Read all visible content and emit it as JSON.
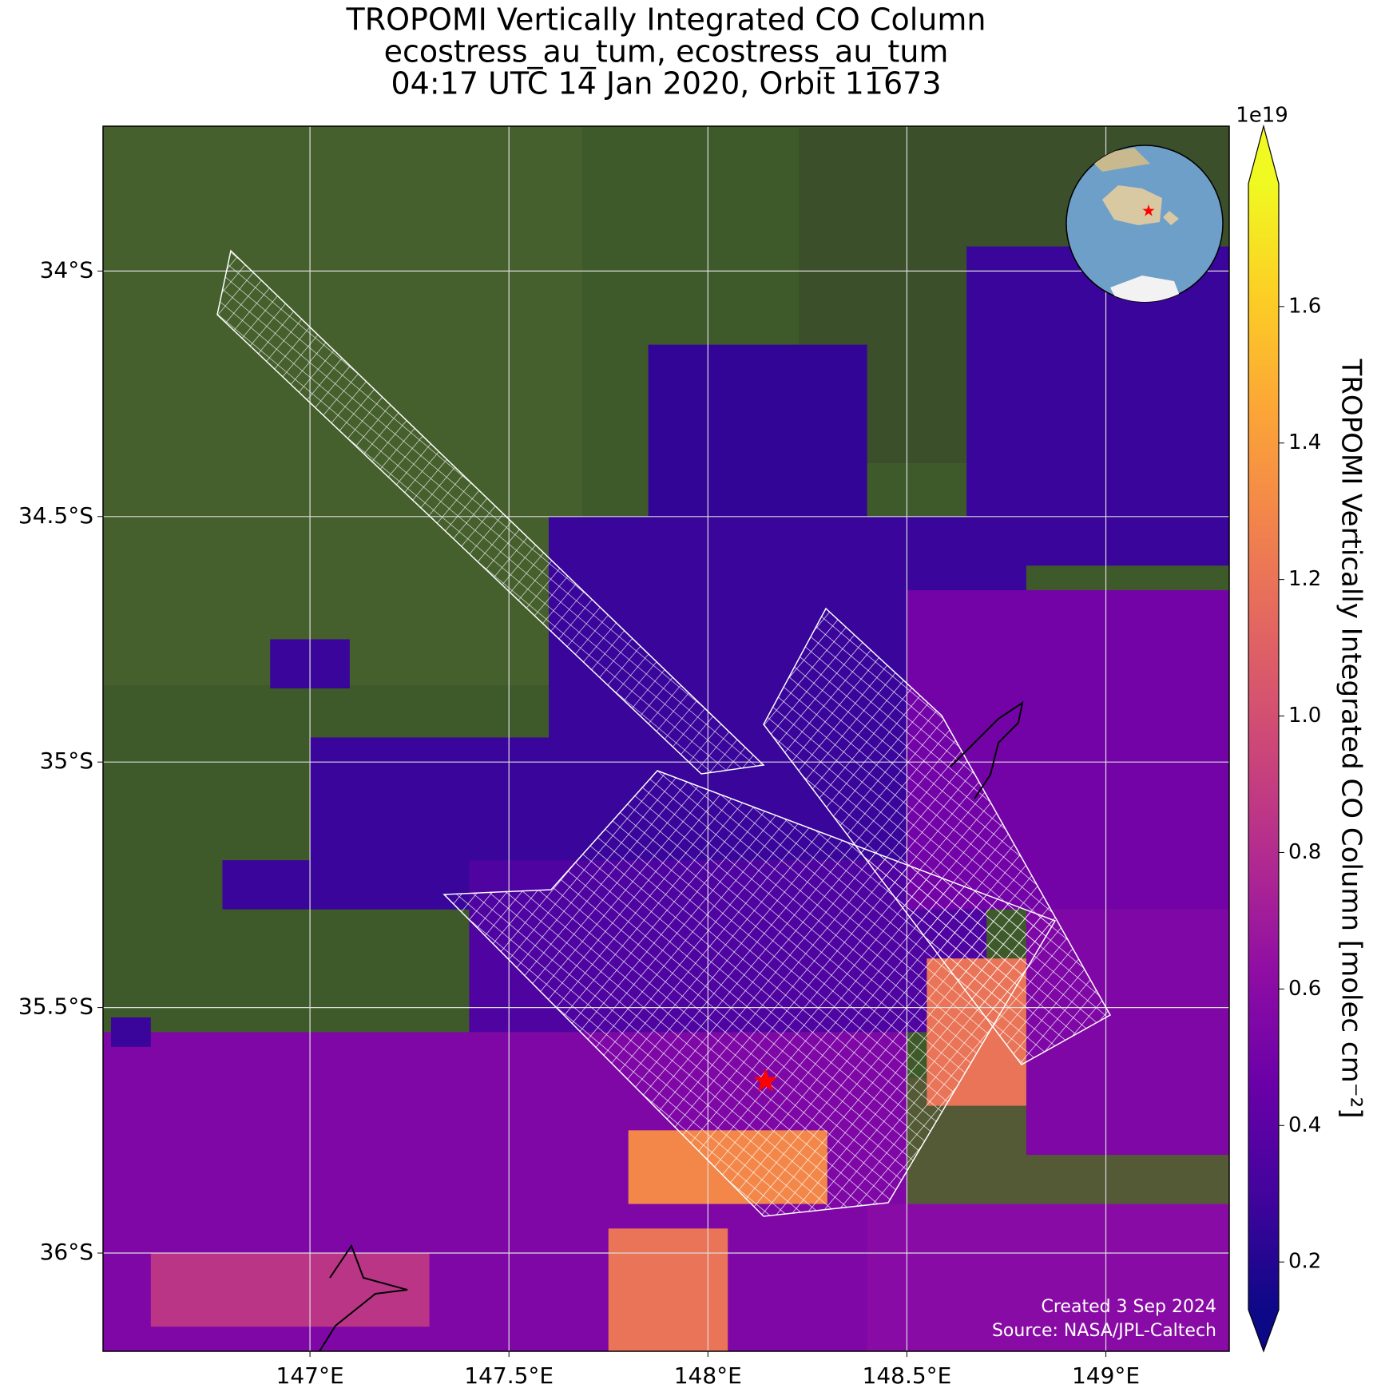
{
  "chart_data": {
    "type": "map",
    "title": "TROPOMI Vertically Integrated CO Column",
    "subtitle": [
      "ecostress_au_tum, ecostress_au_tum",
      "04:17 UTC 14 Jan 2020, Orbit 11673"
    ],
    "xlim": [
      146.48,
      149.31
    ],
    "ylim": [
      -36.2,
      -33.705
    ],
    "xticks": [
      {
        "value": 147,
        "label": "147°E"
      },
      {
        "value": 147.5,
        "label": "147.5°E"
      },
      {
        "value": 148,
        "label": "148°E"
      },
      {
        "value": 148.5,
        "label": "148.5°E"
      },
      {
        "value": 149,
        "label": "149°E"
      }
    ],
    "yticks": [
      {
        "value": -34,
        "label": "34°S"
      },
      {
        "value": -34.5,
        "label": "34.5°S"
      },
      {
        "value": -35,
        "label": "35°S"
      },
      {
        "value": -35.5,
        "label": "35.5°S"
      },
      {
        "value": -36,
        "label": "36°S"
      }
    ],
    "grid": true,
    "colormap": "plasma",
    "clim": [
      0.13,
      1.78
    ],
    "colorbar_label": "TROPOMI Vertically Integrated CO Column [molec cm⁻²]",
    "colorbar_exponent": "1e19",
    "colorbar_ticks": [
      0.2,
      0.4,
      0.6,
      0.8,
      {
        "value": 1,
        "label": "1.0"
      },
      1.2,
      1.4,
      1.6
    ],
    "pixels": [
      {
        "lon": [
          147.85,
          148.4
        ],
        "lat": [
          -34.15,
          -34.5
        ],
        "value": 0.25
      },
      {
        "lon": [
          148.65,
          149.31
        ],
        "lat": [
          -33.95,
          -34.6
        ],
        "value": 0.27
      },
      {
        "lon": [
          147.6,
          148.8
        ],
        "lat": [
          -34.5,
          -35.2
        ],
        "value": 0.27
      },
      {
        "lon": [
          147.0,
          148.0
        ],
        "lat": [
          -34.95,
          -35.3
        ],
        "value": 0.27
      },
      {
        "lon": [
          146.78,
          147.5
        ],
        "lat": [
          -35.2,
          -35.3
        ],
        "value": 0.27
      },
      {
        "lon": [
          146.9,
          147.1
        ],
        "lat": [
          -34.75,
          -34.85
        ],
        "value": 0.27
      },
      {
        "lon": [
          147.4,
          148.7
        ],
        "lat": [
          -35.2,
          -35.55
        ],
        "value": 0.35
      },
      {
        "lon": [
          148.5,
          149.31
        ],
        "lat": [
          -34.65,
          -35.3
        ],
        "value": 0.5
      },
      {
        "lon": [
          148.8,
          149.31
        ],
        "lat": [
          -35.3,
          -35.8
        ],
        "value": 0.55
      },
      {
        "lon": [
          146.48,
          148.5
        ],
        "lat": [
          -35.55,
          -36.2
        ],
        "value": 0.55
      },
      {
        "lon": [
          148.4,
          149.31
        ],
        "lat": [
          -35.9,
          -36.2
        ],
        "value": 0.6
      },
      {
        "lon": [
          146.6,
          147.3
        ],
        "lat": [
          -36.0,
          -36.15
        ],
        "value": 0.85
      },
      {
        "lon": [
          147.8,
          148.3
        ],
        "lat": [
          -35.75,
          -35.9
        ],
        "value": 1.3
      },
      {
        "lon": [
          147.75,
          148.05
        ],
        "lat": [
          -35.95,
          -36.2
        ],
        "value": 1.2
      },
      {
        "lon": [
          148.55,
          148.8
        ],
        "lat": [
          -35.4,
          -35.7
        ],
        "value": 1.2
      },
      {
        "lon": [
          146.5,
          146.6
        ],
        "lat": [
          -35.52,
          -35.58
        ],
        "value": 0.27
      }
    ],
    "site": {
      "lon": 148.145,
      "lat": -35.65
    },
    "annotations": [
      "Created 3 Sep 2024",
      "Source: NASA/JPL-Caltech"
    ]
  }
}
